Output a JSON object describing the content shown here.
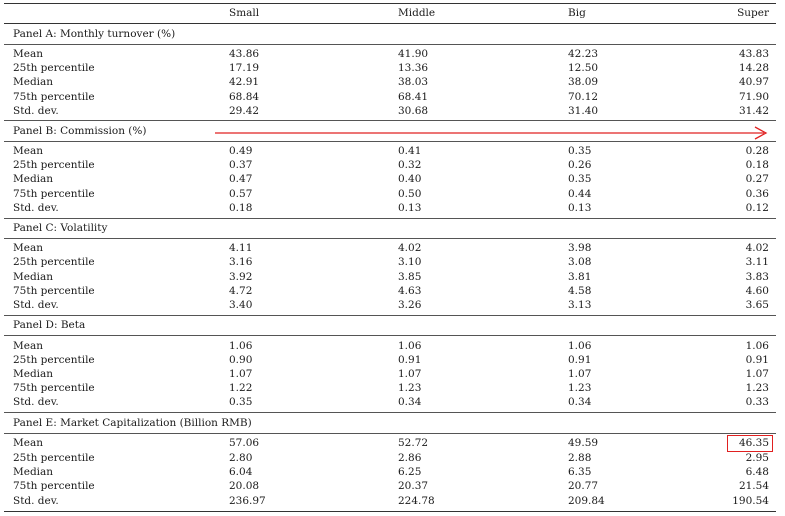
{
  "columns": [
    "Small",
    "Middle",
    "Big",
    "Super"
  ],
  "panels": [
    {
      "title": "Panel A: Monthly turnover (%)",
      "rows": [
        {
          "label": "Mean",
          "values": [
            "43.86",
            "41.90",
            "42.23",
            "43.83"
          ]
        },
        {
          "label": "25th percentile",
          "values": [
            "17.19",
            "13.36",
            "12.50",
            "14.28"
          ]
        },
        {
          "label": "Median",
          "values": [
            "42.91",
            "38.03",
            "38.09",
            "40.97"
          ]
        },
        {
          "label": "75th percentile",
          "values": [
            "68.84",
            "68.41",
            "70.12",
            "71.90"
          ]
        },
        {
          "label": "Std. dev.",
          "values": [
            "29.42",
            "30.68",
            "31.40",
            "31.42"
          ]
        }
      ]
    },
    {
      "title": "Panel B: Commission (%)",
      "rows": [
        {
          "label": "Mean",
          "values": [
            "0.49",
            "0.41",
            "0.35",
            "0.28"
          ]
        },
        {
          "label": "25th percentile",
          "values": [
            "0.37",
            "0.32",
            "0.26",
            "0.18"
          ]
        },
        {
          "label": "Median",
          "values": [
            "0.47",
            "0.40",
            "0.35",
            "0.27"
          ]
        },
        {
          "label": "75th percentile",
          "values": [
            "0.57",
            "0.50",
            "0.44",
            "0.36"
          ]
        },
        {
          "label": "Std. dev.",
          "values": [
            "0.18",
            "0.13",
            "0.13",
            "0.12"
          ]
        }
      ]
    },
    {
      "title": "Panel C: Volatility",
      "rows": [
        {
          "label": "Mean",
          "values": [
            "4.11",
            "4.02",
            "3.98",
            "4.02"
          ]
        },
        {
          "label": "25th percentile",
          "values": [
            "3.16",
            "3.10",
            "3.08",
            "3.11"
          ]
        },
        {
          "label": "Median",
          "values": [
            "3.92",
            "3.85",
            "3.81",
            "3.83"
          ]
        },
        {
          "label": "75th percentile",
          "values": [
            "4.72",
            "4.63",
            "4.58",
            "4.60"
          ]
        },
        {
          "label": "Std. dev.",
          "values": [
            "3.40",
            "3.26",
            "3.13",
            "3.65"
          ]
        }
      ]
    },
    {
      "title": "Panel D: Beta",
      "rows": [
        {
          "label": "Mean",
          "values": [
            "1.06",
            "1.06",
            "1.06",
            "1.06"
          ]
        },
        {
          "label": "25th percentile",
          "values": [
            "0.90",
            "0.91",
            "0.91",
            "0.91"
          ]
        },
        {
          "label": "Median",
          "values": [
            "1.07",
            "1.07",
            "1.07",
            "1.07"
          ]
        },
        {
          "label": "75th percentile",
          "values": [
            "1.22",
            "1.23",
            "1.23",
            "1.23"
          ]
        },
        {
          "label": "Std. dev.",
          "values": [
            "0.35",
            "0.34",
            "0.34",
            "0.33"
          ]
        }
      ]
    },
    {
      "title": "Panel E: Market Capitalization (Billion RMB)",
      "rows": [
        {
          "label": "Mean",
          "values": [
            "57.06",
            "52.72",
            "49.59",
            "46.35"
          ]
        },
        {
          "label": "25th percentile",
          "values": [
            "2.80",
            "2.86",
            "2.88",
            "2.95"
          ]
        },
        {
          "label": "Median",
          "values": [
            "6.04",
            "6.25",
            "6.35",
            "6.48"
          ]
        },
        {
          "label": "75th percentile",
          "values": [
            "20.08",
            "20.37",
            "20.77",
            "21.54"
          ]
        },
        {
          "label": "Std. dev.",
          "values": [
            "236.97",
            "224.78",
            "209.84",
            "190.54"
          ]
        }
      ]
    }
  ],
  "annotations": {
    "arrow_color": "#e02020",
    "highlight_color": "#e02020"
  }
}
